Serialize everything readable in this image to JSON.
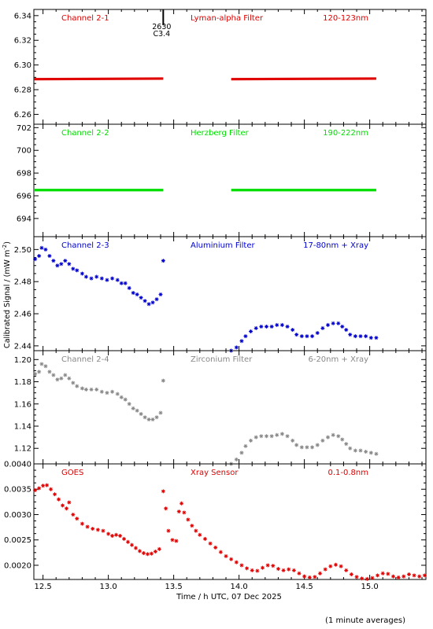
{
  "footer_note": "(1 minute averages)",
  "chart_data": {
    "type": "scatter",
    "xlabel": "Time / h UTC, 07 Dec 2025",
    "ylabel_main": "Calibrated Signal / (mW m",
    "ylabel_exp": "-2",
    "ylabel_close": ")",
    "xlim": [
      12.43,
      15.43
    ],
    "xticks": [
      "12.5",
      "13.0",
      "13.5",
      "14.0",
      "14.5",
      "15.0"
    ],
    "flare_marker": {
      "time": 13.42,
      "label_top": "2630",
      "label_bottom": "C3.4"
    },
    "panels": [
      {
        "channel": "Channel 2-1",
        "filter": "Lyman-alpha Filter",
        "band": "120-123nm",
        "color": "#e00000",
        "marker": "dot",
        "ylim": [
          6.252,
          6.345
        ],
        "yticks": [
          "6.26",
          "6.28",
          "6.30",
          "6.32",
          "6.34"
        ],
        "segments": [
          {
            "t0": 12.43,
            "t1": 13.42,
            "v0": 6.2885,
            "v1": 6.289
          },
          {
            "t0": 13.94,
            "t1": 15.05,
            "v0": 6.2885,
            "v1": 6.289
          }
        ]
      },
      {
        "channel": "Channel 2-2",
        "filter": "Herzberg Filter",
        "band": "190-222nm",
        "color": "#00dd00",
        "marker": "dot",
        "ylim": [
          692.4,
          702.3
        ],
        "yticks": [
          "694",
          "696",
          "698",
          "700",
          "702"
        ],
        "segments": [
          {
            "t0": 12.43,
            "t1": 13.42,
            "v0": 696.5,
            "v1": 696.5
          },
          {
            "t0": 13.94,
            "t1": 15.05,
            "v0": 696.5,
            "v1": 696.5
          }
        ]
      },
      {
        "channel": "Channel 2-3",
        "filter": "Aluminium Filter",
        "band": "17-80nm + Xray",
        "color": "#0000cc",
        "marker": "star",
        "ylim": [
          2.437,
          2.508
        ],
        "yticks": [
          "2.44",
          "2.46",
          "2.48",
          "2.50"
        ],
        "points": [
          [
            12.44,
            2.494
          ],
          [
            12.47,
            2.496
          ],
          [
            12.49,
            2.501
          ],
          [
            12.52,
            2.5
          ],
          [
            12.55,
            2.496
          ],
          [
            12.58,
            2.493
          ],
          [
            12.61,
            2.49
          ],
          [
            12.64,
            2.491
          ],
          [
            12.67,
            2.493
          ],
          [
            12.7,
            2.491
          ],
          [
            12.73,
            2.488
          ],
          [
            12.76,
            2.487
          ],
          [
            12.8,
            2.485
          ],
          [
            12.83,
            2.483
          ],
          [
            12.87,
            2.482
          ],
          [
            12.91,
            2.483
          ],
          [
            12.95,
            2.482
          ],
          [
            12.99,
            2.481
          ],
          [
            13.03,
            2.482
          ],
          [
            13.07,
            2.481
          ],
          [
            13.1,
            2.479
          ],
          [
            13.13,
            2.479
          ],
          [
            13.16,
            2.476
          ],
          [
            13.19,
            2.473
          ],
          [
            13.22,
            2.472
          ],
          [
            13.25,
            2.47
          ],
          [
            13.28,
            2.468
          ],
          [
            13.31,
            2.466
          ],
          [
            13.34,
            2.467
          ],
          [
            13.37,
            2.469
          ],
          [
            13.4,
            2.472
          ],
          [
            13.42,
            2.493
          ],
          [
            13.94,
            2.437
          ],
          [
            13.98,
            2.439
          ],
          [
            14.02,
            2.443
          ],
          [
            14.05,
            2.446
          ],
          [
            14.09,
            2.449
          ],
          [
            14.13,
            2.451
          ],
          [
            14.17,
            2.452
          ],
          [
            14.21,
            2.452
          ],
          [
            14.25,
            2.452
          ],
          [
            14.29,
            2.453
          ],
          [
            14.33,
            2.453
          ],
          [
            14.37,
            2.452
          ],
          [
            14.41,
            2.45
          ],
          [
            14.44,
            2.447
          ],
          [
            14.48,
            2.446
          ],
          [
            14.52,
            2.446
          ],
          [
            14.56,
            2.446
          ],
          [
            14.6,
            2.448
          ],
          [
            14.64,
            2.451
          ],
          [
            14.68,
            2.453
          ],
          [
            14.72,
            2.454
          ],
          [
            14.76,
            2.454
          ],
          [
            14.79,
            2.452
          ],
          [
            14.82,
            2.45
          ],
          [
            14.85,
            2.447
          ],
          [
            14.89,
            2.446
          ],
          [
            14.93,
            2.446
          ],
          [
            14.97,
            2.446
          ],
          [
            15.01,
            2.445
          ],
          [
            15.05,
            2.445
          ]
        ]
      },
      {
        "channel": "Channel 2-4",
        "filter": "Zirconium Filter",
        "band": "6-20nm + Xray",
        "color": "#888888",
        "marker": "star",
        "ylim": [
          1.106,
          1.208
        ],
        "yticks": [
          "1.12",
          "1.14",
          "1.16",
          "1.18",
          "1.20"
        ],
        "points": [
          [
            12.44,
            1.187
          ],
          [
            12.47,
            1.189
          ],
          [
            12.49,
            1.196
          ],
          [
            12.52,
            1.194
          ],
          [
            12.55,
            1.189
          ],
          [
            12.58,
            1.186
          ],
          [
            12.61,
            1.182
          ],
          [
            12.64,
            1.183
          ],
          [
            12.67,
            1.186
          ],
          [
            12.7,
            1.183
          ],
          [
            12.73,
            1.179
          ],
          [
            12.76,
            1.176
          ],
          [
            12.8,
            1.174
          ],
          [
            12.83,
            1.173
          ],
          [
            12.87,
            1.173
          ],
          [
            12.91,
            1.173
          ],
          [
            12.95,
            1.171
          ],
          [
            12.99,
            1.17
          ],
          [
            13.03,
            1.171
          ],
          [
            13.07,
            1.169
          ],
          [
            13.1,
            1.166
          ],
          [
            13.13,
            1.164
          ],
          [
            13.16,
            1.16
          ],
          [
            13.19,
            1.156
          ],
          [
            13.22,
            1.154
          ],
          [
            13.25,
            1.151
          ],
          [
            13.28,
            1.148
          ],
          [
            13.31,
            1.146
          ],
          [
            13.34,
            1.146
          ],
          [
            13.37,
            1.148
          ],
          [
            13.4,
            1.152
          ],
          [
            13.42,
            1.181
          ],
          [
            13.94,
            1.106
          ],
          [
            13.98,
            1.11
          ],
          [
            14.02,
            1.116
          ],
          [
            14.05,
            1.122
          ],
          [
            14.09,
            1.127
          ],
          [
            14.13,
            1.13
          ],
          [
            14.17,
            1.131
          ],
          [
            14.21,
            1.131
          ],
          [
            14.25,
            1.131
          ],
          [
            14.29,
            1.132
          ],
          [
            14.33,
            1.133
          ],
          [
            14.37,
            1.131
          ],
          [
            14.41,
            1.127
          ],
          [
            14.44,
            1.123
          ],
          [
            14.48,
            1.121
          ],
          [
            14.52,
            1.121
          ],
          [
            14.56,
            1.121
          ],
          [
            14.6,
            1.123
          ],
          [
            14.64,
            1.127
          ],
          [
            14.68,
            1.13
          ],
          [
            14.72,
            1.132
          ],
          [
            14.76,
            1.131
          ],
          [
            14.79,
            1.128
          ],
          [
            14.82,
            1.124
          ],
          [
            14.85,
            1.12
          ],
          [
            14.89,
            1.118
          ],
          [
            14.93,
            1.118
          ],
          [
            14.97,
            1.117
          ],
          [
            15.01,
            1.116
          ],
          [
            15.05,
            1.115
          ]
        ]
      },
      {
        "channel": "GOES",
        "filter": "Xray Sensor",
        "band": "0.1-0.8nm",
        "color": "#e00000",
        "marker": "star",
        "ylim": [
          0.00172,
          0.004
        ],
        "yticks": [
          "0.0020",
          "0.0025",
          "0.0030",
          "0.0035",
          "0.0040"
        ],
        "points": [
          [
            12.44,
            0.00348
          ],
          [
            12.47,
            0.00352
          ],
          [
            12.5,
            0.00357
          ],
          [
            12.53,
            0.00358
          ],
          [
            12.56,
            0.0035
          ],
          [
            12.59,
            0.0034
          ],
          [
            12.62,
            0.0033
          ],
          [
            12.65,
            0.00318
          ],
          [
            12.68,
            0.00312
          ],
          [
            12.7,
            0.00324
          ],
          [
            12.73,
            0.003
          ],
          [
            12.76,
            0.00292
          ],
          [
            12.8,
            0.00282
          ],
          [
            12.84,
            0.00276
          ],
          [
            12.88,
            0.00272
          ],
          [
            12.92,
            0.0027
          ],
          [
            12.96,
            0.00268
          ],
          [
            13.0,
            0.00262
          ],
          [
            13.03,
            0.00258
          ],
          [
            13.06,
            0.0026
          ],
          [
            13.09,
            0.00258
          ],
          [
            13.12,
            0.00252
          ],
          [
            13.15,
            0.00246
          ],
          [
            13.18,
            0.0024
          ],
          [
            13.21,
            0.00234
          ],
          [
            13.24,
            0.00228
          ],
          [
            13.27,
            0.00224
          ],
          [
            13.3,
            0.00222
          ],
          [
            13.33,
            0.00223
          ],
          [
            13.36,
            0.00227
          ],
          [
            13.39,
            0.00232
          ],
          [
            13.42,
            0.00346
          ],
          [
            13.44,
            0.00312
          ],
          [
            13.46,
            0.00268
          ],
          [
            13.49,
            0.0025
          ],
          [
            13.52,
            0.00248
          ],
          [
            13.54,
            0.00306
          ],
          [
            13.56,
            0.00322
          ],
          [
            13.58,
            0.00304
          ],
          [
            13.61,
            0.0029
          ],
          [
            13.64,
            0.00278
          ],
          [
            13.67,
            0.00268
          ],
          [
            13.7,
            0.0026
          ],
          [
            13.74,
            0.00252
          ],
          [
            13.78,
            0.00243
          ],
          [
            13.82,
            0.00235
          ],
          [
            13.86,
            0.00226
          ],
          [
            13.9,
            0.00218
          ],
          [
            13.94,
            0.00212
          ],
          [
            13.98,
            0.00206
          ],
          [
            14.02,
            0.002
          ],
          [
            14.06,
            0.00194
          ],
          [
            14.1,
            0.0019
          ],
          [
            14.14,
            0.00189
          ],
          [
            14.18,
            0.00195
          ],
          [
            14.22,
            0.002
          ],
          [
            14.26,
            0.00199
          ],
          [
            14.3,
            0.00193
          ],
          [
            14.34,
            0.0019
          ],
          [
            14.38,
            0.00192
          ],
          [
            14.42,
            0.0019
          ],
          [
            14.46,
            0.00184
          ],
          [
            14.5,
            0.00178
          ],
          [
            14.54,
            0.00176
          ],
          [
            14.58,
            0.00177
          ],
          [
            14.62,
            0.00184
          ],
          [
            14.66,
            0.00192
          ],
          [
            14.7,
            0.00198
          ],
          [
            14.74,
            0.00201
          ],
          [
            14.78,
            0.00198
          ],
          [
            14.82,
            0.0019
          ],
          [
            14.86,
            0.00182
          ],
          [
            14.9,
            0.00177
          ],
          [
            14.94,
            0.00174
          ],
          [
            14.98,
            0.00173
          ],
          [
            15.02,
            0.00175
          ],
          [
            15.06,
            0.0018
          ],
          [
            15.1,
            0.00184
          ],
          [
            15.14,
            0.00183
          ],
          [
            15.18,
            0.00178
          ],
          [
            15.22,
            0.00176
          ],
          [
            15.26,
            0.00178
          ],
          [
            15.3,
            0.00182
          ],
          [
            15.34,
            0.0018
          ],
          [
            15.38,
            0.00178
          ],
          [
            15.42,
            0.0018
          ]
        ]
      }
    ]
  }
}
